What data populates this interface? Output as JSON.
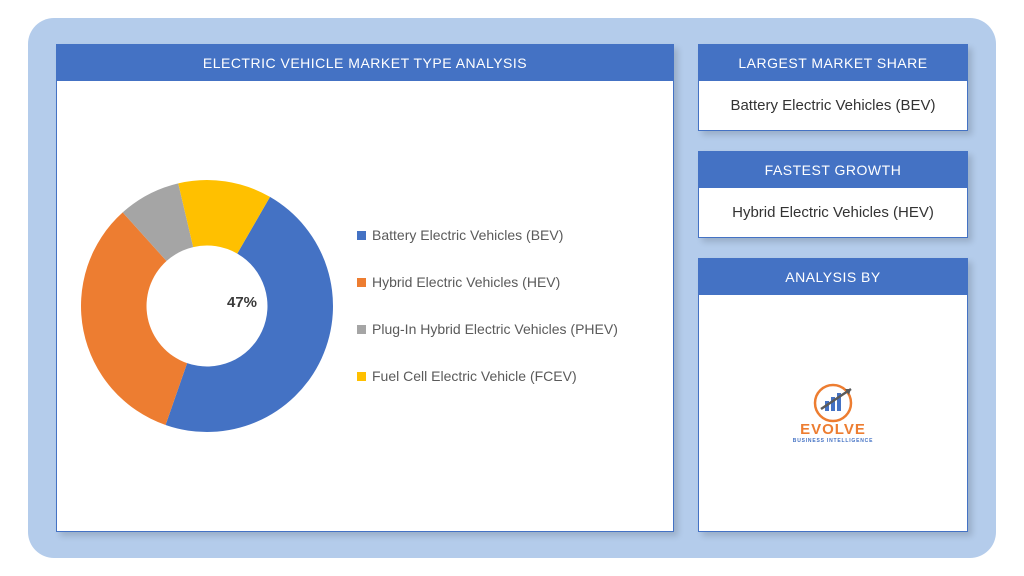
{
  "frame": {
    "background": "#b4cceb",
    "radius": 26
  },
  "main_chart": {
    "title": "ELECTRIC VEHICLE MARKET TYPE ANALYSIS",
    "type": "donut",
    "header_bg": "#4472c4",
    "header_color": "#ffffff",
    "panel_bg": "#ffffff",
    "panel_border": "#4472c4",
    "inner_radius_ratio": 0.48,
    "callout": {
      "label": "47%",
      "slice_index": 0
    },
    "slices": [
      {
        "label": "Battery Electric Vehicles (BEV)",
        "value": 47,
        "color": "#4472c4"
      },
      {
        "label": "Hybrid Electric Vehicles (HEV)",
        "value": 33,
        "color": "#ed7d31"
      },
      {
        "label": "Plug-In Hybrid Electric Vehicles (PHEV)",
        "value": 8,
        "color": "#a5a5a5"
      },
      {
        "label": "Fuel Cell Electric Vehicle (FCEV)",
        "value": 12,
        "color": "#ffc000"
      }
    ],
    "start_angle_deg": -60
  },
  "cards": {
    "largest_share": {
      "header": "LARGEST MARKET SHARE",
      "body": "Battery Electric Vehicles (BEV)"
    },
    "fastest_growth": {
      "header": "FASTEST GROWTH",
      "body": "Hybrid Electric Vehicles (HEV)"
    },
    "analysis_by": {
      "header": "ANALYSIS BY",
      "logo": {
        "name": "EVOLVE",
        "sub": "BUSINESS INTELLIGENCE",
        "accent": "#ed7d31",
        "secondary": "#4472c4"
      }
    }
  },
  "typography": {
    "header_fontsize": 14,
    "body_fontsize": 15,
    "legend_fontsize": 14,
    "callout_fontsize": 15
  }
}
